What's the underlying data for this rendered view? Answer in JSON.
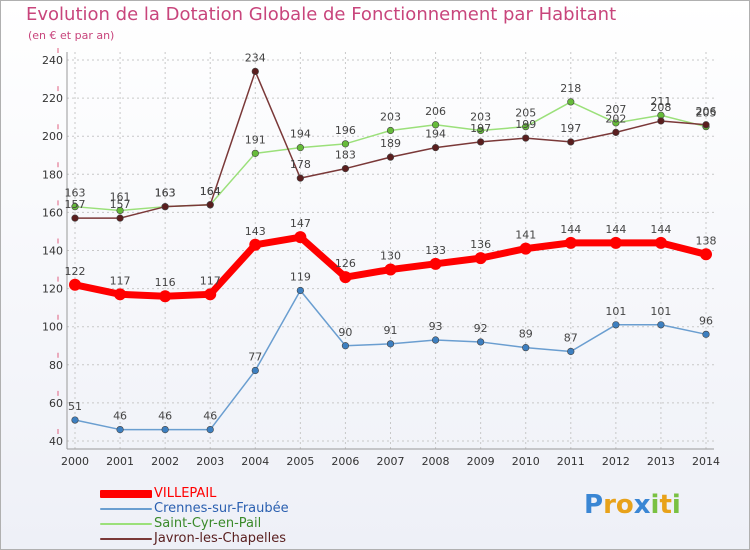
{
  "chart_data": {
    "type": "line",
    "title": "Evolution de la Dotation Globale de Fonctionnement par Habitant",
    "subtitle": "(en € et par an)",
    "x": [
      "2000",
      "2001",
      "2002",
      "2003",
      "2004",
      "2005",
      "2006",
      "2007",
      "2008",
      "2009",
      "2010",
      "2011",
      "2012",
      "2013",
      "2014"
    ],
    "y_ticks": [
      40,
      60,
      80,
      100,
      120,
      140,
      160,
      180,
      200,
      220,
      240
    ],
    "ylim": [
      40,
      240
    ],
    "grid": true,
    "series": [
      {
        "name": "Saint-Cyr-en-Pail",
        "color": "#9be07a",
        "marker": "#66bb3a",
        "values": [
          163,
          161,
          163,
          164,
          191,
          194,
          196,
          203,
          206,
          203,
          205,
          218,
          207,
          211,
          205
        ],
        "labels": [
          "163",
          "161",
          "163",
          "164",
          "191",
          "194",
          "196",
          "203",
          "206",
          "203",
          "205",
          "218",
          "207",
          "211",
          "205"
        ]
      },
      {
        "name": "Javron-les-Chapelles",
        "color": "#7a3838",
        "marker": "#5a1e1e",
        "values": [
          157,
          157,
          163,
          164,
          234,
          178,
          183,
          189,
          194,
          197,
          199,
          197,
          202,
          208,
          206
        ],
        "labels": [
          "157",
          "157",
          "163",
          "164",
          "234",
          "178",
          "183",
          "189",
          "194",
          "197",
          "199",
          "197",
          "202",
          "208",
          "206"
        ]
      },
      {
        "name": "VILLEPAIL",
        "color": "#ff0000",
        "marker": "#ff0000",
        "values": [
          122,
          117,
          116,
          117,
          143,
          147,
          126,
          130,
          133,
          136,
          141,
          144,
          144,
          144,
          138
        ],
        "labels": [
          "122",
          "117",
          "116",
          "117",
          "143",
          "147",
          "126",
          "130",
          "133",
          "136",
          "141",
          "144",
          "144",
          "144",
          "138"
        ]
      },
      {
        "name": "Crennes-sur-Fraubée",
        "color": "#6a9ed0",
        "marker": "#3d7fc0",
        "values": [
          51,
          46,
          46,
          46,
          77,
          119,
          90,
          91,
          93,
          92,
          89,
          87,
          101,
          101,
          96
        ],
        "labels": [
          "51",
          "46",
          "46",
          "46",
          "77",
          "119",
          "90",
          "91",
          "93",
          "92",
          "89",
          "87",
          "101",
          "101",
          "96"
        ]
      }
    ]
  },
  "legend": [
    {
      "label": "VILLEPAIL",
      "color": "#ff0000"
    },
    {
      "label": "Crennes-sur-Fraubée",
      "color": "#6a9ed0"
    },
    {
      "label": "Saint-Cyr-en-Pail",
      "color": "#9be07a"
    },
    {
      "label": "Javron-les-Chapelles",
      "color": "#7a3838"
    }
  ],
  "logo": {
    "text": "Proxiti",
    "letters": [
      "P",
      "r",
      "o",
      "x",
      "i",
      "t",
      "i"
    ],
    "colors": [
      "#3a86d4",
      "#e8a21a",
      "#e8a21a",
      "#3a86d4",
      "#7ac142",
      "#e8a21a",
      "#7ac142"
    ]
  }
}
